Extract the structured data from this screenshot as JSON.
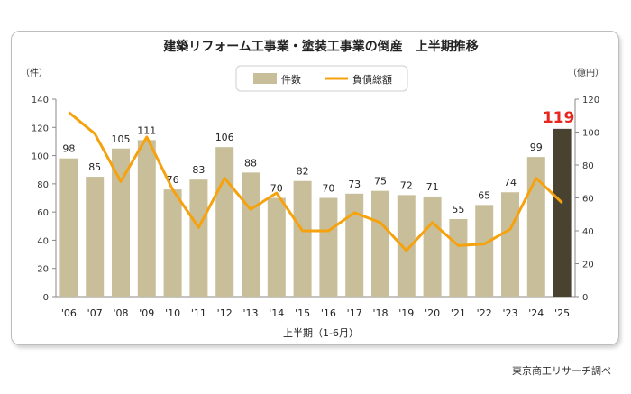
{
  "source": "東京商工リサーチ調べ",
  "chart_data": {
    "type": "bar+line",
    "title": "建築リフォーム工事業・塗装工事業の倒産　上半期推移",
    "xlabel": "上半期（1-6月）",
    "y_left_unit": "（件）",
    "y_right_unit": "（億円）",
    "ylim_left": [
      0,
      140
    ],
    "ylim_right": [
      0,
      120
    ],
    "left_ticks": [
      0,
      20,
      40,
      60,
      80,
      100,
      120,
      140
    ],
    "right_ticks": [
      0,
      20,
      40,
      60,
      80,
      100,
      120
    ],
    "grid": false,
    "legend_position": "top",
    "categories": [
      "'06",
      "'07",
      "'08",
      "'09",
      "'10",
      "'11",
      "'12",
      "'13",
      "'14",
      "'15",
      "'16",
      "'17",
      "'18",
      "'19",
      "'20",
      "'21",
      "'22",
      "'23",
      "'24",
      "'25"
    ],
    "series": [
      {
        "name": "件数",
        "axis": "left",
        "kind": "bar",
        "values": [
          98,
          85,
          105,
          111,
          76,
          83,
          106,
          88,
          70,
          82,
          70,
          73,
          75,
          72,
          71,
          55,
          65,
          74,
          99,
          119
        ],
        "labels": [
          "98",
          "85",
          "105",
          "111",
          "76",
          "83",
          "106",
          "88",
          "70",
          "82",
          "70",
          "73",
          "75",
          "72",
          "71",
          "55",
          "65",
          "74",
          "99",
          "119"
        ]
      },
      {
        "name": "負債総額",
        "axis": "right",
        "kind": "line",
        "values": [
          112,
          99,
          70,
          97,
          65,
          42,
          72,
          53,
          63,
          40,
          40,
          51,
          45,
          28,
          45,
          31,
          32,
          41,
          72,
          57
        ]
      }
    ],
    "highlight_index": 19,
    "colors": {
      "bar": "#c8bf9a",
      "bar_highlight": "#4a4230",
      "line": "#f5a20e",
      "highlight_label": "#e8261b"
    }
  }
}
